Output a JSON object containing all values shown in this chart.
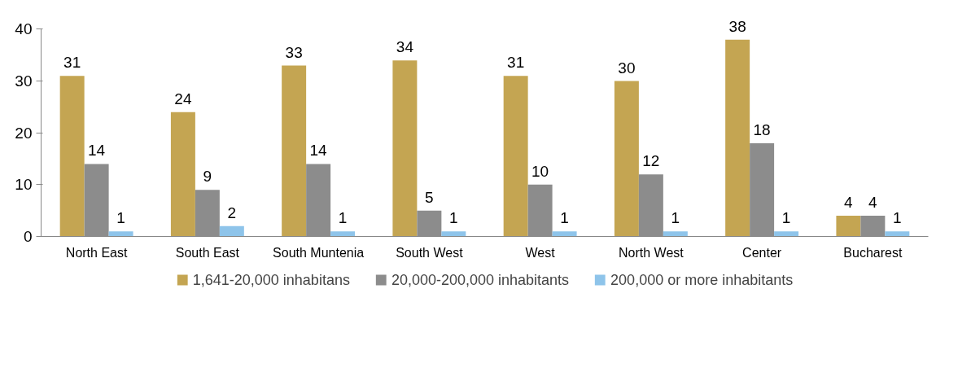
{
  "chart_data": {
    "type": "bar",
    "categories": [
      "North East",
      "South East",
      "South Muntenia",
      "South West",
      "West",
      "North West",
      "Center",
      "Bucharest"
    ],
    "series": [
      {
        "name": "1,641-20,000 inhabitans",
        "color": "#c4a552",
        "values": [
          31,
          24,
          33,
          34,
          31,
          30,
          38,
          4
        ]
      },
      {
        "name": "20,000-200,000 inhabitants",
        "color": "#8c8c8c",
        "values": [
          14,
          9,
          14,
          5,
          10,
          12,
          18,
          4
        ]
      },
      {
        "name": "200,000 or more inhabitants",
        "color": "#8ec4ea",
        "values": [
          1,
          2,
          1,
          1,
          1,
          1,
          1,
          1
        ]
      }
    ],
    "ylim": [
      0,
      40
    ],
    "yticks": [
      0,
      10,
      20,
      30,
      40
    ],
    "grid": false,
    "legend": "bottom",
    "data_labels": true
  }
}
